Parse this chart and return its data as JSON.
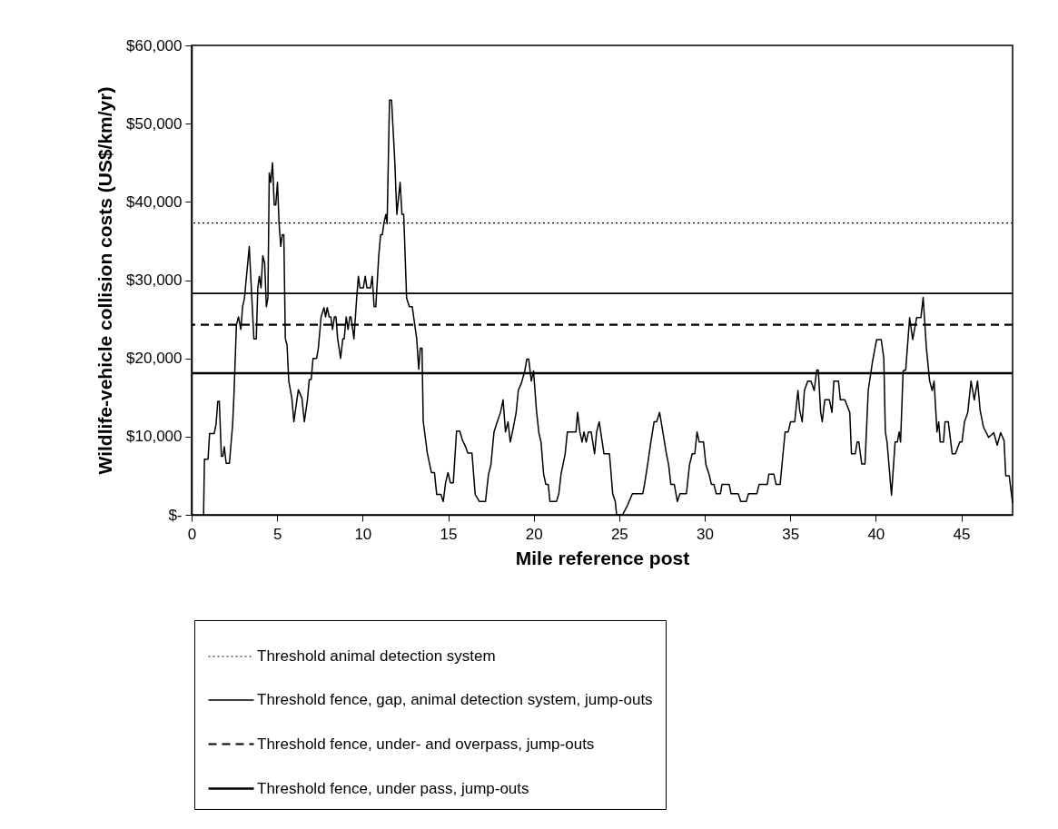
{
  "chart_data": {
    "type": "line",
    "xlabel": "Mile reference post",
    "ylabel": "Wildlife-vehicle collision costs (US$/km/yr)",
    "xlim": [
      0,
      48
    ],
    "xticks": [
      0,
      5,
      10,
      15,
      20,
      25,
      30,
      35,
      40,
      45
    ],
    "ylim": [
      0,
      60000
    ],
    "yticks": [
      {
        "value": 0,
        "label": "$-"
      },
      {
        "value": 10000,
        "label": "$10,000"
      },
      {
        "value": 20000,
        "label": "$20,000"
      },
      {
        "value": 30000,
        "label": "$30,000"
      },
      {
        "value": 40000,
        "label": "$40,000"
      },
      {
        "value": 50000,
        "label": "$50,000"
      },
      {
        "value": 60000,
        "label": "$60,000"
      }
    ],
    "legend": "bottom",
    "x": [
      0.7,
      0.75,
      0.96,
      1.05,
      1.32,
      1.43,
      1.53,
      1.62,
      1.74,
      1.83,
      1.91,
      2.02,
      2.21,
      2.4,
      2.48,
      2.62,
      2.74,
      2.88,
      2.98,
      3.09,
      3.37,
      3.64,
      3.78,
      3.87,
      3.96,
      4.06,
      4.16,
      4.27,
      4.37,
      4.46,
      4.54,
      4.63,
      4.73,
      4.83,
      4.92,
      5.02,
      5.11,
      5.21,
      5.3,
      5.39,
      5.48,
      5.58,
      5.68,
      5.86,
      5.98,
      6.24,
      6.45,
      6.59,
      6.76,
      6.88,
      6.99,
      7.1,
      7.31,
      7.41,
      7.57,
      7.74,
      7.83,
      7.93,
      8.04,
      8.14,
      8.24,
      8.35,
      8.44,
      8.54,
      8.71,
      8.84,
      8.92,
      9.04,
      9.15,
      9.25,
      9.32,
      9.49,
      9.65,
      9.75,
      9.84,
      10.04,
      10.15,
      10.25,
      10.46,
      10.56,
      10.67,
      10.77,
      10.94,
      11.05,
      11.15,
      11.25,
      11.36,
      11.43,
      11.57,
      11.69,
      11.88,
      12.0,
      12.19,
      12.3,
      12.4,
      12.57,
      12.73,
      12.9,
      13.16,
      13.28,
      13.37,
      13.47,
      13.54,
      13.68,
      13.78,
      14.02,
      14.2,
      14.33,
      14.58,
      14.71,
      14.85,
      14.99,
      15.13,
      15.3,
      15.49,
      15.68,
      15.84,
      16.0,
      16.15,
      16.39,
      16.58,
      16.83,
      17.18,
      17.36,
      17.5,
      17.68,
      17.87,
      18.06,
      18.21,
      18.35,
      18.5,
      18.63,
      18.76,
      18.97,
      19.1,
      19.29,
      19.48,
      19.6,
      19.71,
      19.86,
      19.99,
      20.16,
      20.3,
      20.43,
      20.58,
      20.71,
      20.85,
      20.95,
      21.33,
      21.47,
      21.6,
      21.84,
      21.97,
      22.47,
      22.57,
      22.7,
      22.83,
      22.94,
      23.07,
      23.2,
      23.36,
      23.56,
      23.68,
      23.83,
      24.11,
      24.43,
      24.62,
      24.77,
      24.85,
      25.2,
      25.5,
      25.77,
      26.38,
      26.48,
      26.66,
      26.85,
      27.04,
      27.19,
      27.36,
      27.55,
      27.76,
      27.89,
      28.02,
      28.22,
      28.4,
      28.55,
      28.93,
      29.11,
      29.27,
      29.42,
      29.55,
      29.68,
      29.93,
      30.07,
      30.25,
      30.39,
      30.54,
      30.67,
      30.92,
      31.01,
      31.43,
      31.54,
      31.96,
      32.11,
      32.43,
      32.56,
      33.05,
      33.18,
      33.66,
      33.75,
      34.04,
      34.17,
      34.41,
      34.56,
      34.7,
      34.88,
      35.02,
      35.26,
      35.45,
      35.55,
      35.7,
      35.83,
      36.02,
      36.21,
      36.4,
      36.55,
      36.64,
      36.78,
      36.87,
      37.02,
      37.29,
      37.44,
      37.55,
      37.82,
      37.93,
      38.19,
      38.48,
      38.58,
      38.8,
      38.91,
      39.01,
      39.18,
      39.37,
      39.56,
      39.81,
      40.05,
      40.32,
      40.47,
      40.56,
      40.66,
      40.92,
      41.13,
      41.26,
      41.37,
      41.45,
      41.6,
      41.75,
      41.98,
      42.16,
      42.39,
      42.64,
      42.77,
      42.96,
      43.15,
      43.3,
      43.41,
      43.58,
      43.68,
      43.77,
      43.96,
      44.05,
      44.24,
      44.47,
      44.66,
      44.91,
      45.04,
      45.19,
      45.38,
      45.57,
      45.76,
      45.95,
      46.1,
      46.3,
      46.6,
      46.9,
      47.1,
      47.3,
      47.5,
      47.6,
      47.8,
      48.0
    ],
    "series": [
      {
        "color": "#000000",
        "values": [
          0,
          7100,
          7100,
          10400,
          10400,
          11600,
          14500,
          14500,
          7500,
          7500,
          8700,
          6600,
          6600,
          11600,
          15600,
          24300,
          25300,
          23700,
          26600,
          27700,
          34300,
          22500,
          22500,
          29000,
          30500,
          29000,
          33100,
          32200,
          26600,
          27700,
          43700,
          42500,
          45000,
          39600,
          39600,
          42500,
          37400,
          34300,
          35800,
          35800,
          22500,
          21700,
          17100,
          14900,
          11900,
          16000,
          14900,
          11900,
          14500,
          17300,
          17300,
          20000,
          20000,
          21300,
          25300,
          26500,
          25300,
          26500,
          25300,
          25300,
          23700,
          25300,
          25300,
          22500,
          20000,
          22500,
          22500,
          25300,
          23700,
          25300,
          25300,
          22500,
          27700,
          30500,
          29000,
          29000,
          30500,
          29000,
          29000,
          30500,
          26600,
          26600,
          33100,
          35800,
          35800,
          37400,
          38400,
          37200,
          53000,
          53000,
          45100,
          38400,
          42500,
          38400,
          38400,
          27700,
          26600,
          26600,
          22500,
          18600,
          21300,
          21300,
          12000,
          9600,
          7900,
          5400,
          5400,
          2600,
          2600,
          1700,
          4100,
          5400,
          4100,
          4100,
          10700,
          10700,
          9500,
          8800,
          7900,
          7900,
          2600,
          1700,
          1700,
          5200,
          6400,
          10600,
          11900,
          13100,
          14700,
          10600,
          11900,
          9300,
          10600,
          13000,
          15900,
          16900,
          18400,
          19900,
          19900,
          17100,
          18400,
          13400,
          10500,
          9300,
          5200,
          3900,
          3900,
          1700,
          1700,
          2700,
          5200,
          7800,
          10600,
          10600,
          13100,
          10600,
          9300,
          10600,
          9300,
          10600,
          10600,
          7800,
          10600,
          11900,
          7800,
          7800,
          2700,
          1700,
          0,
          0,
          1300,
          2700,
          2700,
          3900,
          6400,
          9300,
          11900,
          11900,
          13100,
          10600,
          7800,
          6400,
          3900,
          3900,
          1700,
          2700,
          2700,
          6400,
          7800,
          7800,
          10600,
          9300,
          9300,
          6400,
          5200,
          3900,
          3900,
          2700,
          2700,
          3900,
          3900,
          2700,
          2700,
          1700,
          1700,
          2700,
          2700,
          3900,
          3900,
          5200,
          5200,
          3900,
          3900,
          7400,
          10600,
          10600,
          11900,
          11900,
          15900,
          13400,
          11900,
          15900,
          17100,
          17100,
          15900,
          18500,
          18500,
          13100,
          11900,
          14700,
          14700,
          13100,
          17100,
          17100,
          14700,
          14700,
          13100,
          7800,
          7800,
          9300,
          9300,
          6500,
          6500,
          15900,
          19600,
          22400,
          22400,
          20000,
          10600,
          9300,
          2500,
          9300,
          9300,
          10600,
          9300,
          18400,
          18500,
          25200,
          22400,
          25200,
          25200,
          27800,
          21300,
          17100,
          15900,
          17100,
          10600,
          11900,
          9300,
          9300,
          11900,
          11900,
          7800,
          7800,
          9300,
          9300,
          11900,
          13100,
          17100,
          14700,
          17100,
          13400,
          11200,
          9900,
          10500,
          8900,
          10500,
          9500,
          5000,
          5000,
          1500
        ]
      }
    ],
    "ref_lines": [
      {
        "axis": "y",
        "value": 37300,
        "label": "Threshold animal detection system",
        "color": "#000000",
        "line_style": "dotted"
      },
      {
        "axis": "y",
        "value": 28300,
        "label": "Threshold fence, gap, animal detection system, jump-outs",
        "color": "#000000",
        "line_style": "solid"
      },
      {
        "axis": "y",
        "value": 24300,
        "label": "Threshold fence, under- and overpass, jump-outs",
        "color": "#000000",
        "line_style": "dashed"
      },
      {
        "axis": "y",
        "value": 18100,
        "label": "Threshold fence, under pass, jump-outs",
        "color": "#000000",
        "line_style": "solid"
      }
    ]
  }
}
